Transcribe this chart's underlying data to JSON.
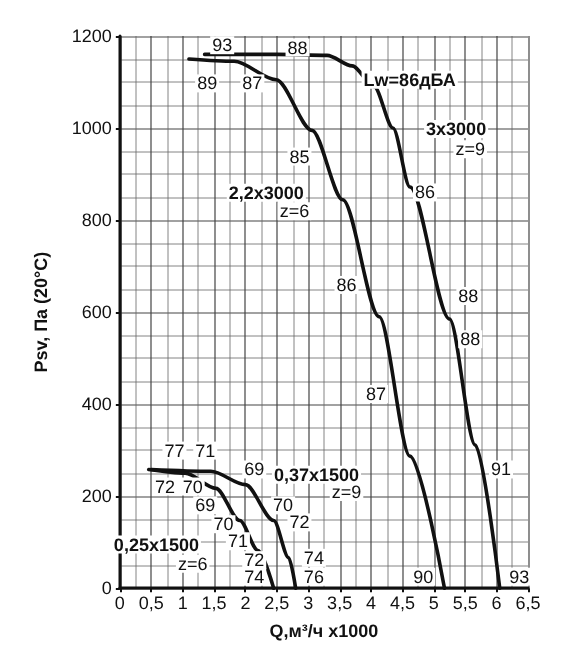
{
  "chart_data": {
    "type": "line",
    "xlabel": "Q,м³/ч x1000",
    "ylabel": "Psv, Па (20°С)",
    "xlim": [
      0,
      6.5
    ],
    "xticks": [
      0,
      {
        "value": 0.5,
        "label": "0,5"
      },
      1,
      {
        "value": 1.5,
        "label": "1,5"
      },
      2,
      {
        "value": 2.5,
        "label": "2,5"
      },
      3,
      {
        "value": 3.5,
        "label": "3,5"
      },
      4,
      {
        "value": 4.5,
        "label": "4,5"
      },
      5,
      {
        "value": 5.5,
        "label": "5,5"
      },
      6,
      {
        "value": 6.5,
        "label": "6,5"
      }
    ],
    "ylim": [
      0,
      1200
    ],
    "yticks": [
      0,
      200,
      400,
      600,
      800,
      1000,
      1200
    ],
    "grid": true,
    "marker": "none",
    "line_style": "solid",
    "series": [
      {
        "color": "#111111",
        "x": [
          1.35,
          2.5,
          3.3,
          3.7,
          4.05,
          4.35,
          4.62,
          5.25,
          5.66,
          6.05
        ],
        "values": [
          1160,
          1160,
          1158,
          1135,
          1090,
          1000,
          872,
          585,
          311,
          0
        ]
      },
      {
        "color": "#111111",
        "x": [
          1.1,
          1.82,
          2.49,
          3.06,
          3.55,
          4.13,
          4.62,
          5.17
        ],
        "values": [
          1150,
          1145,
          1105,
          995,
          844,
          590,
          287,
          0
        ]
      },
      {
        "color": "#111111",
        "x": [
          0.5,
          1.45,
          2.0,
          2.45,
          2.69,
          2.8
        ],
        "values": [
          258,
          254,
          225,
          147,
          66,
          0
        ]
      },
      {
        "color": "#111111",
        "x": [
          0.46,
          1.04,
          1.53,
          1.91,
          2.2,
          2.45
        ],
        "values": [
          258,
          250,
          217,
          147,
          82,
          0
        ]
      }
    ],
    "annotations": [
      {
        "text": "93",
        "x": 1.63,
        "y": 1180
      },
      {
        "text": "88",
        "x": 2.83,
        "y": 1175
      },
      {
        "text": "89",
        "x": 1.39,
        "y": 1097
      },
      {
        "text": "87",
        "x": 2.11,
        "y": 1097
      },
      "Lw=86дБА",
      "3x3000",
      {
        "text": "z=9",
        "x": 5.58,
        "y": 954
      },
      {
        "text": "85",
        "x": 2.86,
        "y": 938
      },
      "2,2x3000",
      {
        "text": "z=6",
        "x": 2.78,
        "y": 819
      },
      {
        "text": "86",
        "x": 4.86,
        "y": 860
      },
      {
        "text": "86",
        "x": 3.61,
        "y": 659
      },
      {
        "text": "88",
        "x": 5.55,
        "y": 635
      },
      {
        "text": "88",
        "x": 5.58,
        "y": 541
      },
      {
        "text": "87",
        "x": 4.08,
        "y": 422
      },
      {
        "text": "91",
        "x": 6.07,
        "y": 258
      },
      {
        "text": "90",
        "x": 4.83,
        "y": 25
      },
      {
        "text": "93",
        "x": 6.36,
        "y": 25
      },
      {
        "text": "77",
        "x": 0.87,
        "y": 299
      },
      {
        "text": "71",
        "x": 1.36,
        "y": 299
      },
      {
        "text": "72",
        "x": 0.72,
        "y": 221
      },
      {
        "text": "70",
        "x": 1.16,
        "y": 221
      },
      {
        "text": "69",
        "x": 2.14,
        "y": 258
      },
      "0,37x1500",
      {
        "text": "z=9",
        "x": 3.61,
        "y": 209
      },
      {
        "text": "69",
        "x": 1.36,
        "y": 180
      },
      {
        "text": "70",
        "x": 2.6,
        "y": 180
      },
      {
        "text": "72",
        "x": 2.86,
        "y": 143
      },
      {
        "text": "70",
        "x": 1.65,
        "y": 139
      },
      "0,25x1500",
      {
        "text": "71",
        "x": 1.88,
        "y": 102
      },
      {
        "text": "z=6",
        "x": 1.16,
        "y": 53
      },
      {
        "text": "72",
        "x": 2.14,
        "y": 61
      },
      {
        "text": "74",
        "x": 3.09,
        "y": 66
      },
      {
        "text": "74",
        "x": 2.14,
        "y": 25
      },
      {
        "text": "76",
        "x": 3.09,
        "y": 25
      }
    ]
  }
}
